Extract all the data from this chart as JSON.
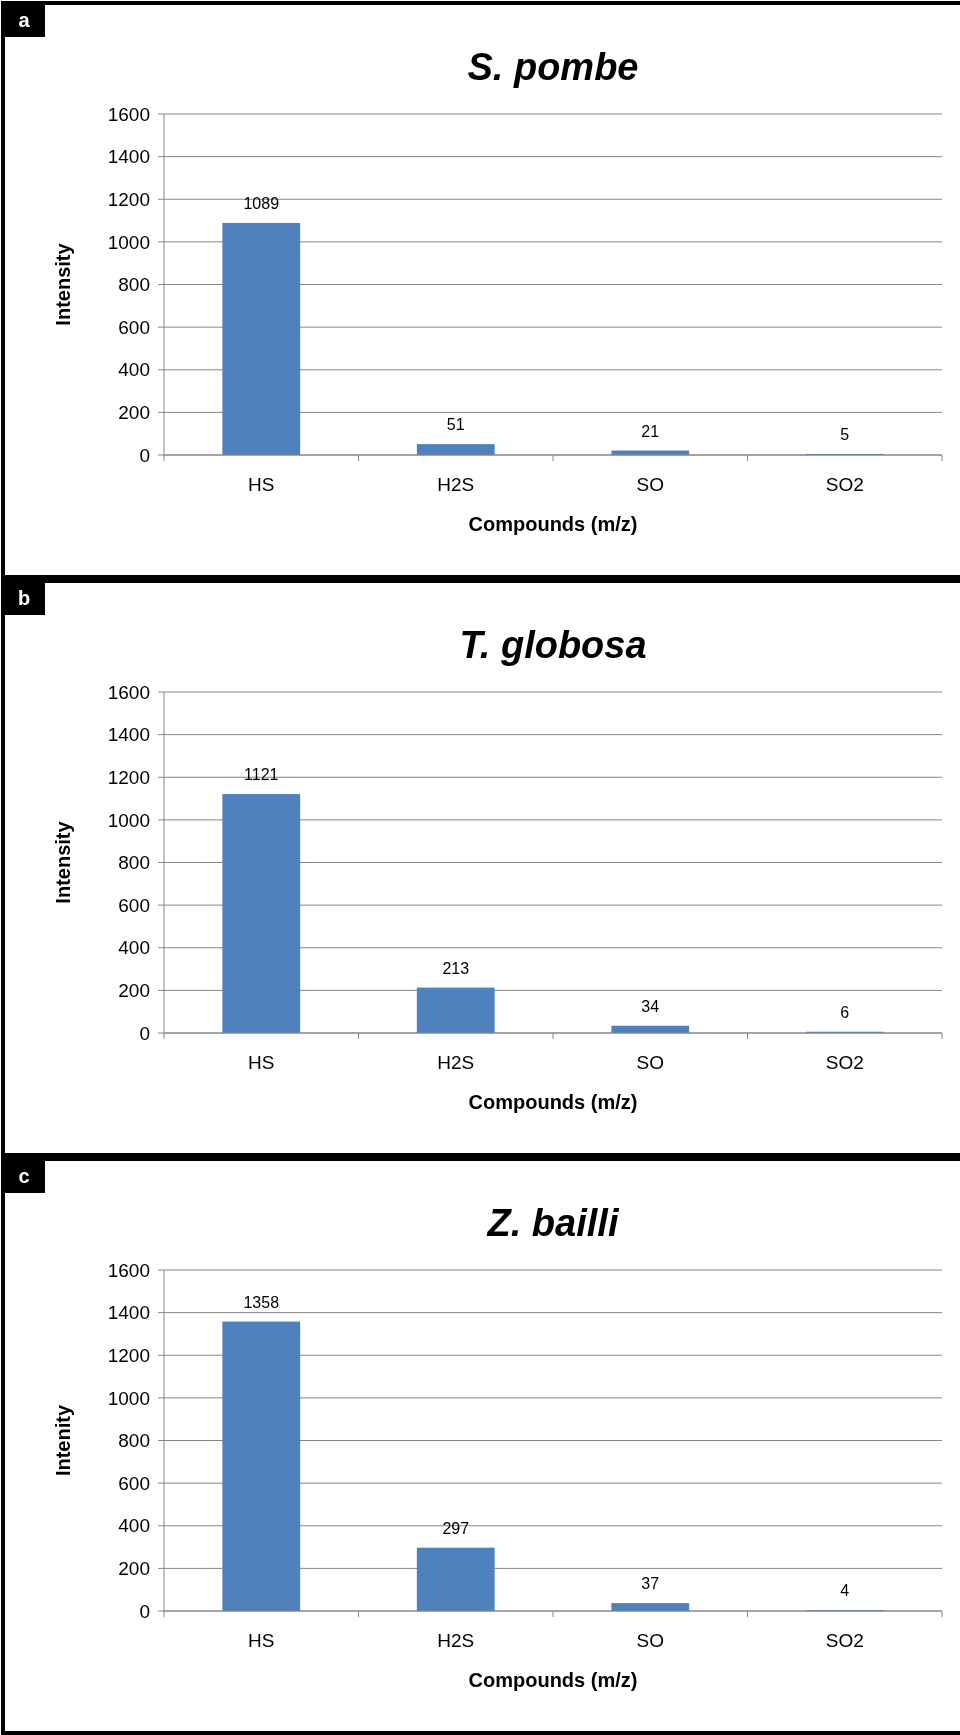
{
  "chart_data": [
    {
      "type": "bar",
      "title": "S. pombe",
      "xlabel": "Compounds (m/z)",
      "ylabel": "Intensity",
      "annotations": [
        "a"
      ],
      "categories": [
        "HS",
        "H2S",
        "SO",
        "SO2"
      ],
      "values": [
        1089,
        51,
        21,
        5
      ],
      "color": "#4f81bd",
      "ylim": [
        0,
        1600
      ],
      "yticks": [
        0,
        200,
        400,
        600,
        800,
        1000,
        1200,
        1400,
        1600
      ],
      "grid": "y",
      "data_labels": true
    },
    {
      "type": "bar",
      "title": "T. globosa",
      "xlabel": "Compounds (m/z)",
      "ylabel": "Intensity",
      "annotations": [
        "b"
      ],
      "categories": [
        "HS",
        "H2S",
        "SO",
        "SO2"
      ],
      "values": [
        1121,
        213,
        34,
        6
      ],
      "color": "#4f81bd",
      "ylim": [
        0,
        1600
      ],
      "yticks": [
        0,
        200,
        400,
        600,
        800,
        1000,
        1200,
        1400,
        1600
      ],
      "grid": "y",
      "data_labels": true
    },
    {
      "type": "bar",
      "title": "Z. bailli",
      "xlabel": "Compounds (m/z)",
      "ylabel": "Intenity",
      "annotations": [
        "c"
      ],
      "categories": [
        "HS",
        "H2S",
        "SO",
        "SO2"
      ],
      "values": [
        1358,
        297,
        37,
        4
      ],
      "color": "#4f81bd",
      "ylim": [
        0,
        1600
      ],
      "yticks": [
        0,
        200,
        400,
        600,
        800,
        1000,
        1200,
        1400,
        1600
      ],
      "grid": "y",
      "data_labels": true
    }
  ]
}
